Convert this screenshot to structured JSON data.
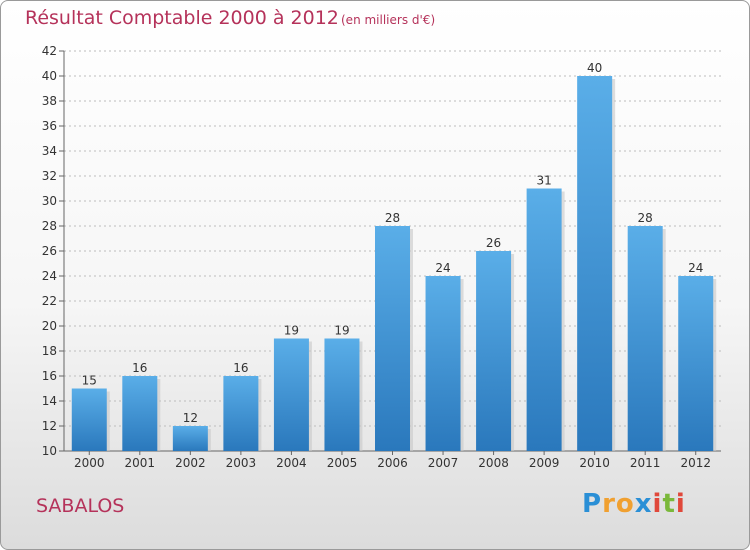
{
  "header": {
    "title": "Résultat Comptable 2000 à 2012",
    "subtitle": "(en milliers d'€)"
  },
  "footer": {
    "commune": "SABALOS",
    "logo_letters": [
      "P",
      "r",
      "o",
      "x",
      "i",
      "t",
      "i"
    ],
    "logo_colors": [
      "#2a8fd6",
      "#f0a030",
      "#f0a030",
      "#2a8fd6",
      "#e0483a",
      "#7ab83a",
      "#e0483a"
    ]
  },
  "colors": {
    "title": "#b5325a",
    "bar_top": "#5aaee8",
    "bar_bottom": "#2a78bc",
    "grid": "#bdbdbd",
    "axis_text": "#333333"
  },
  "chart_data": {
    "type": "bar",
    "categories": [
      "2000",
      "2001",
      "2002",
      "2003",
      "2004",
      "2005",
      "2006",
      "2007",
      "2008",
      "2009",
      "2010",
      "2011",
      "2012"
    ],
    "values": [
      15,
      16,
      12,
      16,
      19,
      19,
      28,
      24,
      26,
      31,
      40,
      28,
      24
    ],
    "ylim": [
      10,
      42
    ],
    "yticks": [
      10,
      12,
      14,
      16,
      18,
      20,
      22,
      24,
      26,
      28,
      30,
      32,
      34,
      36,
      38,
      40,
      42
    ],
    "grid": true
  }
}
